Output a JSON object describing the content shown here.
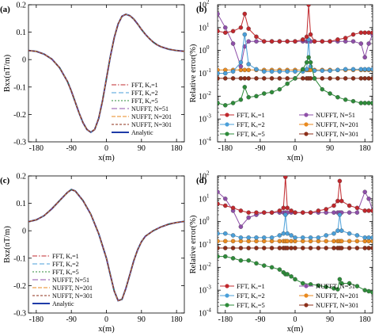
{
  "colors": {
    "fft1": "#c0282d",
    "fft2": "#4a9fd9",
    "fft5": "#2e8b3a",
    "nufft51": "#8e4fa8",
    "nufft201": "#e98a1f",
    "nufft301": "#8c2f1a",
    "analytic": "#1f3ca8"
  },
  "chart_data": [
    {
      "panel_label": "(a)",
      "type": "line",
      "xlabel": "x(m)",
      "ylabel": "Bxx(nT/m)",
      "xlim": [
        -200,
        200
      ],
      "ylim": [
        -0.3,
        0.2
      ],
      "xticks": [
        -180,
        -90,
        0,
        90,
        180
      ],
      "yticks": [
        -0.3,
        -0.2,
        -0.1,
        0,
        0.1,
        0.2
      ],
      "ytick_labels": [
        "-0.3",
        "-0.2",
        "-0.1",
        "0",
        "0.1",
        "0.2"
      ],
      "legend_position": "center-right",
      "x": [
        -200,
        -180,
        -160,
        -140,
        -120,
        -100,
        -90,
        -80,
        -70,
        -60,
        -50,
        -40,
        -30,
        -20,
        -10,
        0,
        10,
        20,
        30,
        40,
        50,
        60,
        70,
        80,
        90,
        100,
        110,
        120,
        130,
        140,
        160,
        180,
        200
      ],
      "series": [
        {
          "name": "FFT, Kₐ=1",
          "key": "fft1",
          "dash": "6,2,1.5,2"
        },
        {
          "name": "FFT, Kₐ=2",
          "key": "fft2",
          "dash": "6,3"
        },
        {
          "name": "FFT, Kₐ=5",
          "key": "fft5",
          "dash": "2,2"
        },
        {
          "name": "NUFFT, N=51",
          "key": "nufft51",
          "dash": "7,3"
        },
        {
          "name": "NUFFT, N=201",
          "key": "nufft201",
          "dash": "5,2"
        },
        {
          "name": "NUFFT, N=301",
          "key": "nufft301",
          "dash": "3,2"
        },
        {
          "name": "Analytic",
          "key": "analytic",
          "dash": "",
          "width": 2,
          "values": [
            0.033,
            0.03,
            0.02,
            0.002,
            -0.03,
            -0.08,
            -0.115,
            -0.155,
            -0.195,
            -0.23,
            -0.255,
            -0.265,
            -0.255,
            -0.215,
            -0.15,
            -0.07,
            0.01,
            0.08,
            0.13,
            0.158,
            0.165,
            0.16,
            0.148,
            0.13,
            0.11,
            0.092,
            0.077,
            0.064,
            0.054,
            0.047,
            0.038,
            0.033,
            0.03
          ]
        }
      ]
    },
    {
      "panel_label": "(b)",
      "type": "line",
      "xlabel": "x(m)",
      "ylabel": "Relative error(%)",
      "yscale": "log",
      "xlim": [
        -200,
        200
      ],
      "ylim": [
        0.0001,
        100
      ],
      "xticks": [
        -180,
        -90,
        0,
        90,
        180
      ],
      "ytick_exponents": [
        "-4",
        "-3",
        "-2",
        "-1",
        "0",
        "1",
        "2"
      ],
      "legend_position": "bottom",
      "x": [
        -200,
        -180,
        -160,
        -140,
        -130,
        -120,
        -100,
        -80,
        -60,
        -40,
        -20,
        0,
        20,
        30,
        35,
        40,
        50,
        70,
        90,
        110,
        130,
        150,
        170,
        180,
        190,
        200
      ],
      "series": [
        {
          "name": "FFT, Kₐ=1",
          "key": "fft1",
          "marker": "circle",
          "values": [
            7,
            6,
            7,
            10,
            40,
            9,
            4,
            2.5,
            2.5,
            2.5,
            2.5,
            2.5,
            3,
            4,
            100,
            5,
            2.5,
            2.5,
            2.5,
            3,
            3.5,
            5,
            6,
            6,
            6,
            6
          ]
        },
        {
          "name": "FFT, Kₐ=2",
          "key": "fft2",
          "marker": "circle",
          "values": [
            0.1,
            0.1,
            0.12,
            0.3,
            5,
            0.25,
            0.15,
            0.12,
            0.12,
            0.12,
            0.12,
            0.12,
            0.12,
            0.15,
            3,
            0.2,
            0.13,
            0.13,
            0.13,
            0.14,
            0.15,
            0.15,
            0.15,
            0.15,
            0.15,
            0.15
          ]
        },
        {
          "name": "FFT, Kₐ=5",
          "key": "fft5",
          "marker": "circle",
          "values": [
            0.005,
            0.004,
            0.005,
            0.007,
            0.025,
            0.009,
            0.01,
            0.013,
            0.015,
            0.02,
            0.035,
            0.06,
            0.15,
            0.3,
            0.5,
            0.3,
            0.06,
            0.02,
            0.013,
            0.009,
            0.007,
            0.006,
            0.005,
            0.005,
            0.005,
            0.005
          ]
        },
        {
          "name": "NUFFT, N=51",
          "key": "nufft51",
          "marker": "circle",
          "values": [
            40,
            10,
            2,
            0.2,
            1.5,
            2.5,
            2.5,
            2.5,
            2.5,
            2.5,
            2.5,
            2.5,
            2.5,
            2.5,
            2.5,
            2.5,
            2.5,
            2.5,
            2.5,
            2.5,
            2.5,
            2.5,
            2,
            0.5,
            2,
            5
          ]
        },
        {
          "name": "NUFFT, N=201",
          "key": "nufft201",
          "marker": "circle",
          "values": [
            0.14,
            0.14,
            0.14,
            0.14,
            0.14,
            0.14,
            0.14,
            0.14,
            0.14,
            0.14,
            0.14,
            0.14,
            0.14,
            0.14,
            0.14,
            0.14,
            0.14,
            0.14,
            0.14,
            0.14,
            0.14,
            0.14,
            0.14,
            0.14,
            0.14,
            0.14
          ]
        },
        {
          "name": "NUFFT, N=301",
          "key": "nufft301",
          "marker": "circle",
          "values": [
            0.06,
            0.06,
            0.06,
            0.06,
            0.06,
            0.06,
            0.06,
            0.06,
            0.06,
            0.06,
            0.06,
            0.06,
            0.06,
            0.06,
            0.06,
            0.06,
            0.06,
            0.06,
            0.06,
            0.06,
            0.06,
            0.06,
            0.06,
            0.06,
            0.06,
            0.06
          ]
        }
      ]
    },
    {
      "panel_label": "(c)",
      "type": "line",
      "xlabel": "x(m)",
      "ylabel": "Bxz(nT/m)",
      "xlim": [
        -200,
        200
      ],
      "ylim": [
        -0.3,
        0.2
      ],
      "xticks": [
        -180,
        -90,
        0,
        90,
        180
      ],
      "yticks": [
        -0.3,
        -0.2,
        -0.1,
        0,
        0.1,
        0.2
      ],
      "ytick_labels": [
        "-0.3",
        "-0.2",
        "-0.1",
        "0",
        "0.1",
        "0.2"
      ],
      "legend_position": "bottom-left",
      "x": [
        -200,
        -180,
        -160,
        -140,
        -120,
        -100,
        -90,
        -80,
        -60,
        -40,
        -20,
        0,
        10,
        20,
        30,
        40,
        50,
        60,
        70,
        80,
        90,
        100,
        120,
        140,
        160,
        180,
        200
      ],
      "series": [
        {
          "name": "FFT, Kₐ=1",
          "key": "fft1",
          "dash": "6,2,1.5,2"
        },
        {
          "name": "FFT, Kₐ=2",
          "key": "fft2",
          "dash": "6,3"
        },
        {
          "name": "FFT, Kₐ=5",
          "key": "fft5",
          "dash": "2,2"
        },
        {
          "name": "NUFFT, N=51",
          "key": "nufft51",
          "dash": "7,3"
        },
        {
          "name": "NUFFT, N=201",
          "key": "nufft201",
          "dash": "5,2"
        },
        {
          "name": "NUFFT, N=301",
          "key": "nufft301",
          "dash": "3,2"
        },
        {
          "name": "Analytic",
          "key": "analytic",
          "dash": "",
          "width": 2,
          "values": [
            0.033,
            0.04,
            0.055,
            0.08,
            0.11,
            0.14,
            0.15,
            0.145,
            0.11,
            0.06,
            -0.01,
            -0.1,
            -0.16,
            -0.22,
            -0.255,
            -0.25,
            -0.21,
            -0.16,
            -0.11,
            -0.07,
            -0.04,
            -0.02,
            0.0,
            0.014,
            0.024,
            0.03,
            0.034
          ]
        }
      ]
    },
    {
      "panel_label": "(d)",
      "type": "line",
      "xlabel": "x(m)",
      "ylabel": "Relative error(%)",
      "yscale": "log",
      "xlim": [
        -200,
        200
      ],
      "ylim": [
        0.0001,
        100
      ],
      "xticks": [
        -180,
        -90,
        0,
        90,
        180
      ],
      "ytick_exponents": [
        "-4",
        "-3",
        "-2",
        "-1",
        "0",
        "1",
        "2"
      ],
      "legend_position": "bottom",
      "x": [
        -200,
        -180,
        -160,
        -140,
        -120,
        -100,
        -80,
        -60,
        -40,
        -30,
        -25,
        -20,
        -10,
        0,
        20,
        40,
        60,
        80,
        100,
        110,
        115,
        120,
        140,
        160,
        180,
        190,
        200
      ],
      "series": [
        {
          "name": "FFT, Kₐ=1",
          "key": "fft1",
          "marker": "circle",
          "values": [
            6,
            5,
            4,
            3,
            2.5,
            2.5,
            2.5,
            2.5,
            3,
            4,
            90,
            4,
            3,
            2.5,
            2.5,
            2.5,
            3,
            3.5,
            5,
            8,
            60,
            8,
            5,
            4,
            3,
            3,
            3
          ]
        },
        {
          "name": "FFT, Kₐ=2",
          "key": "fft2",
          "marker": "circle",
          "values": [
            0.3,
            0.3,
            0.25,
            0.2,
            0.2,
            0.2,
            0.2,
            0.2,
            0.25,
            0.3,
            2,
            0.3,
            0.25,
            0.2,
            0.2,
            0.2,
            0.2,
            0.25,
            0.3,
            0.4,
            2,
            0.4,
            0.3,
            0.25,
            0.2,
            0.2,
            0.2
          ]
        },
        {
          "name": "FFT, Kₐ=5",
          "key": "fft5",
          "marker": "circle",
          "values": [
            0.03,
            0.03,
            0.025,
            0.02,
            0.02,
            0.015,
            0.012,
            0.01,
            0.008,
            0.006,
            0.005,
            0.005,
            0.004,
            0.003,
            0.002,
            0.0018,
            0.0016,
            0.0014,
            0.0012,
            0.0011,
            0.003,
            0.002,
            0.002,
            0.0015,
            0.001,
            0.0009,
            0.0008
          ]
        },
        {
          "name": "NUFFT, N=51",
          "key": "nufft51",
          "marker": "circle",
          "values": [
            20,
            10,
            3,
            0.6,
            1.5,
            2,
            2.5,
            2.5,
            2.5,
            2.5,
            2.5,
            2.5,
            2.5,
            2.5,
            2.5,
            2.5,
            2.5,
            2.5,
            2.5,
            2.5,
            2.5,
            2.5,
            2.5,
            2.5,
            20,
            10,
            3
          ]
        },
        {
          "name": "NUFFT, N=201",
          "key": "nufft201",
          "marker": "circle",
          "values": [
            0.14,
            0.14,
            0.14,
            0.14,
            0.14,
            0.14,
            0.14,
            0.14,
            0.14,
            0.14,
            0.14,
            0.14,
            0.14,
            0.14,
            0.14,
            0.14,
            0.14,
            0.14,
            0.14,
            0.14,
            0.14,
            0.14,
            0.14,
            0.14,
            0.14,
            0.14,
            0.14
          ]
        },
        {
          "name": "NUFFT, N=301",
          "key": "nufft301",
          "marker": "circle",
          "values": [
            0.07,
            0.07,
            0.07,
            0.07,
            0.07,
            0.07,
            0.07,
            0.07,
            0.07,
            0.07,
            0.07,
            0.07,
            0.07,
            0.07,
            0.07,
            0.07,
            0.07,
            0.07,
            0.07,
            0.07,
            0.07,
            0.07,
            0.07,
            0.07,
            0.07,
            0.07,
            0.07
          ]
        }
      ]
    }
  ]
}
